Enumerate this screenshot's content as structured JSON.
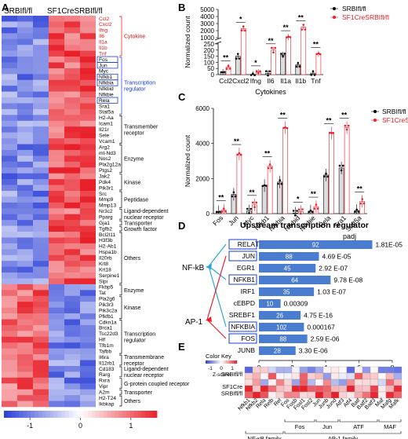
{
  "chart_data": [
    {
      "panel": "A",
      "type": "heatmap",
      "column_groups": [
        "SRBIfl/fl",
        "SF1CreSRBIfl/fl"
      ],
      "genes": [
        "Ccl2",
        "Cxcl2",
        "Ifng",
        "Il6",
        "Il1a",
        "Il1b",
        "Tnf",
        "Fos",
        "Jun",
        "Myc",
        "Nfkb1",
        "Nfkbia",
        "Nfkbid",
        "Nfkbie",
        "Rela",
        "Sra1",
        "Stat5a",
        "H2-Aa",
        "Icam1",
        "Il21r",
        "Sele",
        "Vcam1",
        "Arg2",
        "mt-Nd3",
        "Nos2",
        "Pla2g12a",
        "Ptgs2",
        "Jak2",
        "Pdk4",
        "Pik3r1",
        "Src",
        "Mmp9",
        "Mmp13",
        "Nr3c2",
        "Pparg",
        "Gja1",
        "Tgfb2",
        "Bcl2l11",
        "H3f3b",
        "H2-Ab1",
        "Hspa1b",
        "Il20rb",
        "Krt8",
        "Krt18",
        "Serpine1",
        "Slpi",
        "Fkbp5",
        "Tat",
        "Pla2g6",
        "Pik3r3",
        "Pik3c2a",
        "Pfkfb1",
        "Cdkn1a",
        "Brca1",
        "Tsc22d3",
        "Hlf",
        "Tfb1m",
        "Tafbb",
        "Il6ra",
        "Il12rb1",
        "Cd183",
        "Rarg",
        "Rxra",
        "Vipr",
        "A2m",
        "H2-T24",
        "Ikbkap"
      ],
      "boxed_genes": [
        "Fos",
        "Jun",
        "Nfkb1",
        "Nfkbia",
        "Rela"
      ],
      "categories": [
        {
          "label": "Cytokine",
          "color": "#e01010"
        },
        {
          "label": "Transcription\nregulator",
          "color": "#1a3fd0"
        },
        {
          "label": "Transmember\nreceptor",
          "color": "#000000"
        },
        {
          "label": "Enzyme",
          "color": "#000000"
        },
        {
          "label": "Kinase",
          "color": "#000000"
        },
        {
          "label": "Peptidase",
          "color": "#000000"
        },
        {
          "label": "Ligand-dependent\nnuclear receptor",
          "color": "#000000"
        },
        {
          "label": "Transporter",
          "color": "#000000"
        },
        {
          "label": "Growth factor",
          "color": "#000000"
        },
        {
          "label": "Others",
          "color": "#000000"
        },
        {
          "label": "Enzyme",
          "color": "#000000"
        },
        {
          "label": "Kinase",
          "color": "#000000"
        },
        {
          "label": "Transcription\nregulator",
          "color": "#000000"
        },
        {
          "label": "Transmembrane\nreceptor",
          "color": "#000000"
        },
        {
          "label": "Ligand-dependent\nnuclear receptor",
          "color": "#000000"
        },
        {
          "label": "G-protein coupled receptor",
          "color": "#000000"
        },
        {
          "label": "Transporter",
          "color": "#000000"
        },
        {
          "label": "Others",
          "color": "#000000"
        }
      ],
      "color_scale": {
        "ticks": [
          "-1",
          "0",
          "1"
        ],
        "min": -1.5,
        "max": 1.5,
        "low": "#2b3fd6",
        "mid": "#ffffff",
        "high": "#e8202a"
      }
    },
    {
      "panel": "B",
      "type": "bar",
      "categories": [
        "Ccl2",
        "Cxcl2",
        "Ifng",
        "Il6",
        "Il1a",
        "Il1b",
        "Tnf"
      ],
      "series": [
        {
          "name": "SRBIfl/fl",
          "values": [
            20,
            150,
            2,
            10,
            160,
            80,
            12
          ],
          "color": "#000000"
        },
        {
          "name": "SF1CreSRBIfl/fl",
          "values": [
            60,
            2300,
            20,
            200,
            1100,
            2500,
            170
          ],
          "color": "#e8202a"
        }
      ],
      "significance": [
        "**",
        "*",
        "*",
        "**",
        "**",
        "**",
        "**"
      ],
      "ylabel": "Normalized count",
      "xlabel": "Cytokines",
      "yticks": [
        "0",
        "50",
        "100",
        "150",
        "200",
        "250",
        "1000",
        "2000",
        "3000",
        "4000",
        "5000"
      ],
      "axis_break": {
        "between": [
          250,
          1000
        ]
      },
      "ylim": [
        0,
        5000
      ]
    },
    {
      "panel": "C",
      "type": "bar",
      "categories": [
        "Fos",
        "Jun",
        "Myc",
        "Nfkb1",
        "Nfkbia",
        "Nfkbid",
        "Nfkbie",
        "Rela",
        "Sra1",
        "Stat5a"
      ],
      "series": [
        {
          "name": "SRBIfl/fl",
          "values": [
            100,
            1100,
            150,
            1600,
            1800,
            30,
            140,
            2200,
            2600,
            170
          ],
          "color": "#000000"
        },
        {
          "name": "SF1CreSRBIfl/fl",
          "values": [
            200,
            3400,
            500,
            2700,
            4900,
            120,
            400,
            4600,
            4900,
            700
          ],
          "color": "#e8202a"
        }
      ],
      "significance": [
        "**",
        "**",
        "**",
        "**",
        "**",
        "*",
        "**",
        "**",
        "**",
        "**"
      ],
      "ylabel": "Normalized count",
      "xlabel": "Transcription regulator",
      "ylim": [
        0,
        6000
      ],
      "yticks": [
        0,
        2000,
        4000,
        6000
      ]
    },
    {
      "panel": "D",
      "type": "bar",
      "title": "Upstream transcription regulator",
      "orientation": "horizontal",
      "categories": [
        "RELA",
        "JUN",
        "EGR1",
        "NFKB1",
        "IRF1",
        "cEBPD",
        "SREBF1",
        "NFKBIA",
        "FOS",
        "JUNB"
      ],
      "values": [
        6.8,
        3.6,
        3.4,
        4.3,
        3.3,
        1.3,
        2.5,
        2.7,
        2.9,
        2.2
      ],
      "bar_labels": [
        "92",
        "88",
        "45",
        "64",
        "35",
        "10",
        "26",
        "102",
        "88",
        "28"
      ],
      "padj": [
        "1.81E-05",
        "4.69 E-05",
        "2.92 E-07",
        "9.78 E-08",
        "1.03 E-07",
        "0.00309",
        "4.75 E-16",
        "0.000167",
        "2.59 E-06",
        "3.30 E-06"
      ],
      "padj_header": "padj",
      "boxed": [
        "RELA",
        "JUN",
        "NFKB1",
        "NFKBIA",
        "FOS"
      ],
      "groups": [
        {
          "label": "NF-kB",
          "color": "#29a8d8"
        },
        {
          "label": "AP-1",
          "color": "#e8202a"
        }
      ],
      "xlabel": "Z-score",
      "xlim": [
        0,
        8
      ],
      "xticks": [
        0,
        2,
        4,
        6,
        8
      ],
      "bar_color": "#4a7ccf"
    },
    {
      "panel": "E",
      "type": "heatmap",
      "rows": [
        "SRBIfl/fl",
        "SF1Cre\nSRBIfl/fl"
      ],
      "columns": [
        "Nfkb1",
        "Nfkb2",
        "Rela",
        "Relb",
        "Rel",
        "Fos",
        "Fosb",
        "Fosl1",
        "Fosl2",
        "Jun",
        "Junb",
        "Jund",
        "Atf3",
        "Atf4",
        "Batf",
        "Batf2",
        "Batf3",
        "Maf",
        "Mafg",
        "Mafk"
      ],
      "family_groups": [
        {
          "label": "NF-κB family",
          "start": 0,
          "end": 4
        },
        {
          "label": "AP-1 family",
          "start": 5,
          "end": 19
        }
      ],
      "sub_groups": [
        {
          "label": "Fos",
          "start": 5,
          "end": 8
        },
        {
          "label": "Jun",
          "start": 9,
          "end": 11
        },
        {
          "label": "ATF",
          "start": 12,
          "end": 16
        },
        {
          "label": "MAF",
          "start": 17,
          "end": 19
        }
      ],
      "color_key": {
        "title": "Color Key",
        "subtitle": "Z-score",
        "ticks": [
          "-1",
          "0",
          "1"
        ]
      }
    }
  ],
  "panel_labels": [
    "A",
    "B",
    "C",
    "D",
    "E"
  ]
}
